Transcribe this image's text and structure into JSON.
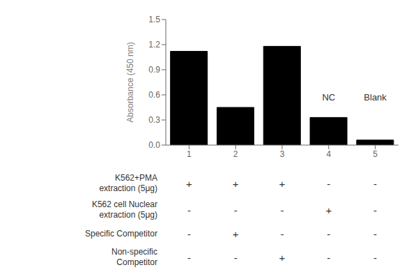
{
  "chart_data": {
    "type": "bar",
    "categories": [
      "1",
      "2",
      "3",
      "4",
      "5"
    ],
    "values": [
      1.12,
      0.45,
      1.18,
      0.33,
      0.06
    ],
    "color": "#000000",
    "ylim": [
      0,
      1.5
    ],
    "yticks": [
      0.0,
      0.3,
      0.6,
      0.9,
      1.2,
      1.5
    ],
    "y_label": "Absorbance (450 nm)",
    "annotations": [
      {
        "text": "NC",
        "x": "4",
        "y": 0.49
      },
      {
        "text": "Blank",
        "x": "5",
        "y": 0.49
      }
    ],
    "table": [
      {
        "label_lines": [
          "K562+PMA",
          "extraction (5μg)"
        ],
        "signs": [
          "+",
          "+",
          "+",
          "-",
          "-"
        ]
      },
      {
        "label_lines": [
          "K562 cell Nuclear",
          "extraction (5μg)"
        ],
        "signs": [
          "-",
          "-",
          "-",
          "+",
          "-"
        ]
      },
      {
        "label_lines": [
          "Specific Competitor"
        ],
        "signs": [
          "-",
          "+",
          "-",
          "-",
          "-"
        ]
      },
      {
        "label_lines": [
          "Non-specific",
          "Competitor"
        ],
        "signs": [
          "-",
          "-",
          "+",
          "-",
          "-"
        ]
      }
    ]
  }
}
